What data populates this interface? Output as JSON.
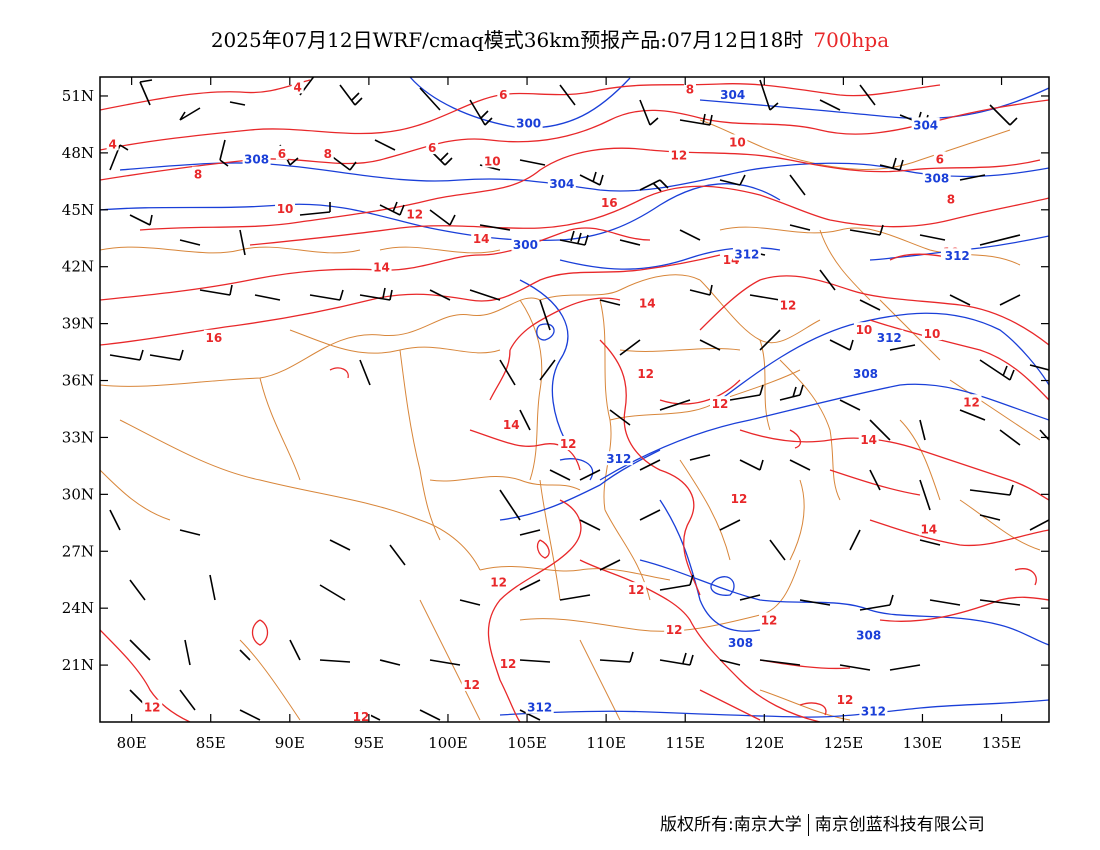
{
  "title": {
    "main": "2025年07月12日WRF/cmaq模式36km预报产品:07月12日18时",
    "level": "700hpa"
  },
  "map": {
    "projection": "lat-lon",
    "lon_range": [
      78,
      138
    ],
    "lat_range": [
      18,
      52
    ],
    "lat_ticks": [
      "51N",
      "48N",
      "45N",
      "42N",
      "39N",
      "36N",
      "33N",
      "30N",
      "27N",
      "24N",
      "21N"
    ],
    "lon_ticks": [
      "80E",
      "85E",
      "90E",
      "95E",
      "100E",
      "105E",
      "110E",
      "115E",
      "120E",
      "125E",
      "130E",
      "135E"
    ],
    "colors": {
      "temperature": "#e8282a",
      "geopotential": "#1a3fd8",
      "boundaries": "#d8863a",
      "wind_barbs": "#000000"
    },
    "temperature_labels": [
      {
        "text": "4",
        "lon": 90.5,
        "lat": 51.4
      },
      {
        "text": "6",
        "lon": 103.5,
        "lat": 51.0
      },
      {
        "text": "8",
        "lon": 115.3,
        "lat": 51.3
      },
      {
        "text": "4",
        "lon": 78.8,
        "lat": 48.4
      },
      {
        "text": "6",
        "lon": 89.5,
        "lat": 47.9
      },
      {
        "text": "8",
        "lon": 92.4,
        "lat": 47.9
      },
      {
        "text": "6",
        "lon": 99.0,
        "lat": 48.2
      },
      {
        "text": "10",
        "lon": 102.8,
        "lat": 47.5
      },
      {
        "text": "12",
        "lon": 114.6,
        "lat": 47.8
      },
      {
        "text": "10",
        "lon": 118.3,
        "lat": 48.5
      },
      {
        "text": "6",
        "lon": 131.1,
        "lat": 47.6
      },
      {
        "text": "8",
        "lon": 84.2,
        "lat": 46.8
      },
      {
        "text": "8",
        "lon": 131.8,
        "lat": 45.5
      },
      {
        "text": "10",
        "lon": 89.7,
        "lat": 45.0
      },
      {
        "text": "12",
        "lon": 97.9,
        "lat": 44.7
      },
      {
        "text": "16",
        "lon": 110.2,
        "lat": 45.3
      },
      {
        "text": "14",
        "lon": 102.1,
        "lat": 43.4
      },
      {
        "text": "14",
        "lon": 95.8,
        "lat": 41.9
      },
      {
        "text": "14",
        "lon": 117.9,
        "lat": 42.3
      },
      {
        "text": "10",
        "lon": 131.8,
        "lat": 42.7
      },
      {
        "text": "14",
        "lon": 112.6,
        "lat": 40.0
      },
      {
        "text": "12",
        "lon": 121.5,
        "lat": 39.9
      },
      {
        "text": "16",
        "lon": 85.2,
        "lat": 38.2
      },
      {
        "text": "10",
        "lon": 126.3,
        "lat": 38.6
      },
      {
        "text": "10",
        "lon": 130.6,
        "lat": 38.4
      },
      {
        "text": "12",
        "lon": 112.5,
        "lat": 36.3
      },
      {
        "text": "12",
        "lon": 117.2,
        "lat": 34.7
      },
      {
        "text": "12",
        "lon": 133.1,
        "lat": 34.8
      },
      {
        "text": "14",
        "lon": 104.0,
        "lat": 33.6
      },
      {
        "text": "14",
        "lon": 126.6,
        "lat": 32.8
      },
      {
        "text": "12",
        "lon": 107.6,
        "lat": 32.6
      },
      {
        "text": "12",
        "lon": 118.4,
        "lat": 29.7
      },
      {
        "text": "14",
        "lon": 130.4,
        "lat": 28.1
      },
      {
        "text": "12",
        "lon": 103.2,
        "lat": 25.3
      },
      {
        "text": "12",
        "lon": 111.9,
        "lat": 24.9
      },
      {
        "text": "12",
        "lon": 114.3,
        "lat": 22.8
      },
      {
        "text": "12",
        "lon": 120.3,
        "lat": 23.3
      },
      {
        "text": "12",
        "lon": 103.8,
        "lat": 21.0
      },
      {
        "text": "12",
        "lon": 101.5,
        "lat": 19.9
      },
      {
        "text": "12",
        "lon": 125.1,
        "lat": 19.1
      },
      {
        "text": "12",
        "lon": 81.3,
        "lat": 18.7
      },
      {
        "text": "12",
        "lon": 94.5,
        "lat": 18.2
      }
    ],
    "geopotential_labels": [
      {
        "text": "304",
        "lon": 118.0,
        "lat": 51.0
      },
      {
        "text": "300",
        "lon": 105.1,
        "lat": 49.5
      },
      {
        "text": "304",
        "lon": 130.2,
        "lat": 49.4
      },
      {
        "text": "308",
        "lon": 87.9,
        "lat": 47.6
      },
      {
        "text": "308",
        "lon": 130.9,
        "lat": 46.6
      },
      {
        "text": "304",
        "lon": 107.2,
        "lat": 46.3
      },
      {
        "text": "300",
        "lon": 104.9,
        "lat": 43.1
      },
      {
        "text": "312",
        "lon": 118.9,
        "lat": 42.6
      },
      {
        "text": "312",
        "lon": 132.2,
        "lat": 42.5
      },
      {
        "text": "312",
        "lon": 127.9,
        "lat": 38.2
      },
      {
        "text": "308",
        "lon": 126.4,
        "lat": 36.3
      },
      {
        "text": "312",
        "lon": 110.8,
        "lat": 31.8
      },
      {
        "text": "308",
        "lon": 118.5,
        "lat": 22.1
      },
      {
        "text": "308",
        "lon": 126.6,
        "lat": 22.5
      },
      {
        "text": "312",
        "lon": 105.8,
        "lat": 18.7
      },
      {
        "text": "312",
        "lon": 126.9,
        "lat": 18.5
      }
    ]
  },
  "footer": {
    "left": "版权所有:南京大学",
    "right": "南京创蓝科技有限公司"
  }
}
